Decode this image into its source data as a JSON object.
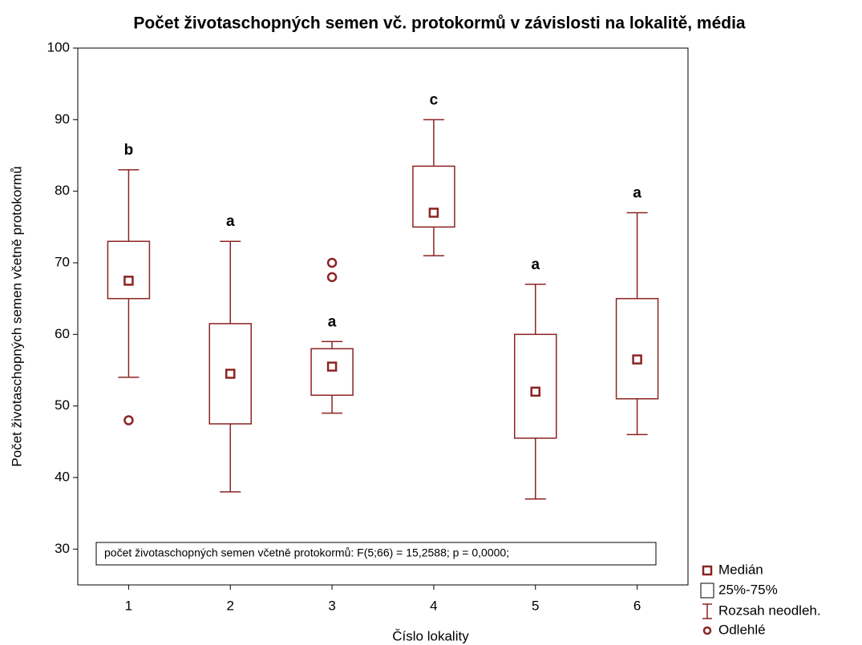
{
  "chart_data": {
    "type": "box",
    "title": "Počet životaschopných semen vč. protokormů v závislosti na lokalitě, média",
    "x_label": "Číslo lokality",
    "y_label": "Počet životaschopných semen včetně protokormů",
    "annotation": "počet životaschopných semen včetně protokormů:   F(5;66) = 15,2588; p = 0,0000;",
    "color": "#8b2323",
    "categories": [
      "1",
      "2",
      "3",
      "4",
      "5",
      "6"
    ],
    "boxes": [
      {
        "min": 54,
        "q1": 65,
        "median": 67.5,
        "q3": 73,
        "max": 83,
        "outliers": [
          48
        ],
        "label": "b"
      },
      {
        "min": 38,
        "q1": 47.5,
        "median": 54.5,
        "q3": 61.5,
        "max": 73,
        "outliers": [],
        "label": "a"
      },
      {
        "min": 49,
        "q1": 51.5,
        "median": 55.5,
        "q3": 58,
        "max": 59,
        "outliers": [
          68,
          70
        ],
        "label": "a"
      },
      {
        "min": 71,
        "q1": 75,
        "median": 77,
        "q3": 83.5,
        "max": 90,
        "outliers": [],
        "label": "c"
      },
      {
        "min": 37,
        "q1": 45.5,
        "median": 52,
        "q3": 60,
        "max": 67,
        "outliers": [],
        "label": "a"
      },
      {
        "min": 46,
        "q1": 51,
        "median": 56.5,
        "q3": 65,
        "max": 77,
        "outliers": [],
        "label": "a"
      }
    ],
    "legend": [
      "Medián",
      "25%-75%",
      "Rozsah neodleh.",
      "Odlehlé"
    ],
    "ylim": [
      25,
      100
    ],
    "yticks": [
      30,
      40,
      50,
      60,
      70,
      80,
      90,
      100
    ]
  }
}
